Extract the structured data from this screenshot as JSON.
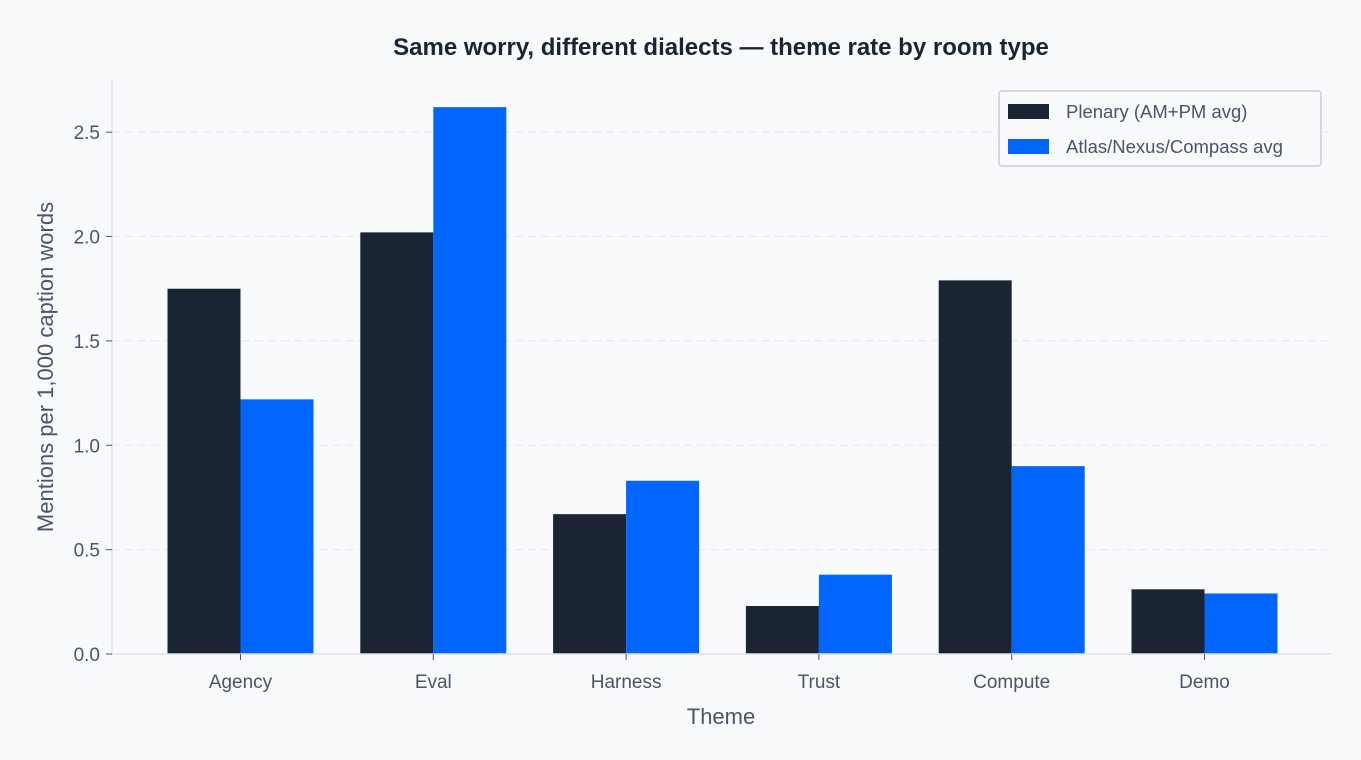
{
  "chart_data": {
    "type": "bar",
    "title": "Same worry, different dialects — theme rate by room type",
    "xlabel": "Theme",
    "ylabel": "Mentions per 1,000 caption words",
    "categories": [
      "Agency",
      "Eval",
      "Harness",
      "Trust",
      "Compute",
      "Demo"
    ],
    "series": [
      {
        "name": "Plenary (AM+PM avg)",
        "color": "#1b2433",
        "values": [
          1.75,
          2.02,
          0.67,
          0.23,
          1.79,
          0.31
        ]
      },
      {
        "name": "Atlas/Nexus/Compass avg",
        "color": "#0066ff",
        "values": [
          1.22,
          2.62,
          0.83,
          0.38,
          0.9,
          0.29
        ]
      }
    ],
    "ylim": [
      0,
      2.75
    ],
    "yticks": [
      "0.0",
      "0.5",
      "1.0",
      "1.5",
      "2.0",
      "2.5"
    ],
    "grid": true,
    "legend_position": "top-right"
  }
}
